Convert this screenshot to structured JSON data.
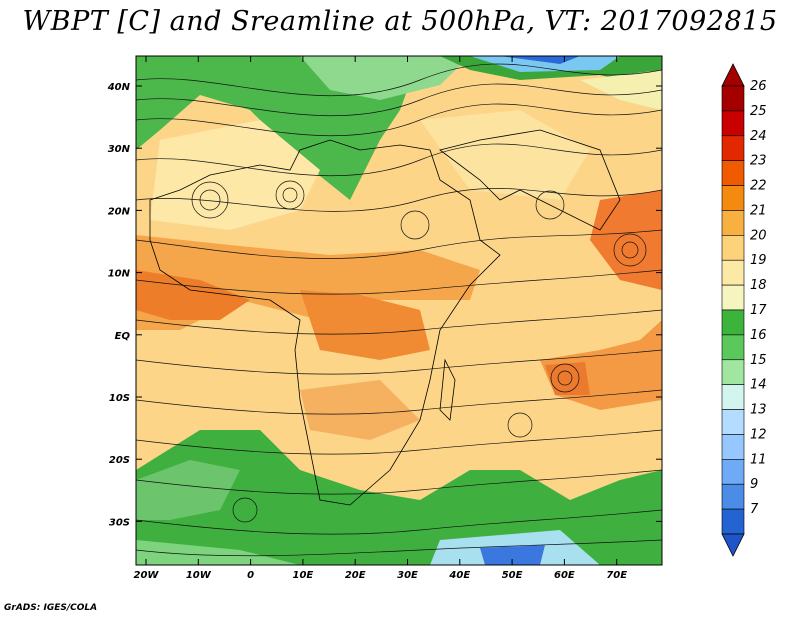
{
  "title": "WBPT [C] and Sreamline at 500hPa, VT: 2017092815",
  "credit": "GrADS: IGES/COLA",
  "map": {
    "variable": "WBPT [C]",
    "overlay": "Streamline",
    "level": "500hPa",
    "valid_time": "2017092815",
    "lat_ticks": [
      "40N",
      "30N",
      "20N",
      "10N",
      "EQ",
      "10S",
      "20S",
      "30S"
    ],
    "lon_ticks": [
      "20W",
      "10W",
      "0",
      "10E",
      "20E",
      "30E",
      "40E",
      "50E",
      "60E",
      "70E"
    ]
  },
  "colorbar": {
    "labels": [
      "26",
      "25",
      "24",
      "23",
      "22",
      "21",
      "20",
      "19",
      "18",
      "17",
      "16",
      "15",
      "14",
      "13",
      "12",
      "11",
      "9",
      "7"
    ],
    "colors": [
      "#a50000",
      "#c80000",
      "#e12800",
      "#f05a00",
      "#f58a10",
      "#f8b040",
      "#fcd27a",
      "#fde9a6",
      "#f5f5c0",
      "#3cb43c",
      "#5ac85a",
      "#a0e6a0",
      "#d2f5f0",
      "#b4dcff",
      "#96c8ff",
      "#6eaaf5",
      "#4b8ce6",
      "#2364d2"
    ]
  }
}
